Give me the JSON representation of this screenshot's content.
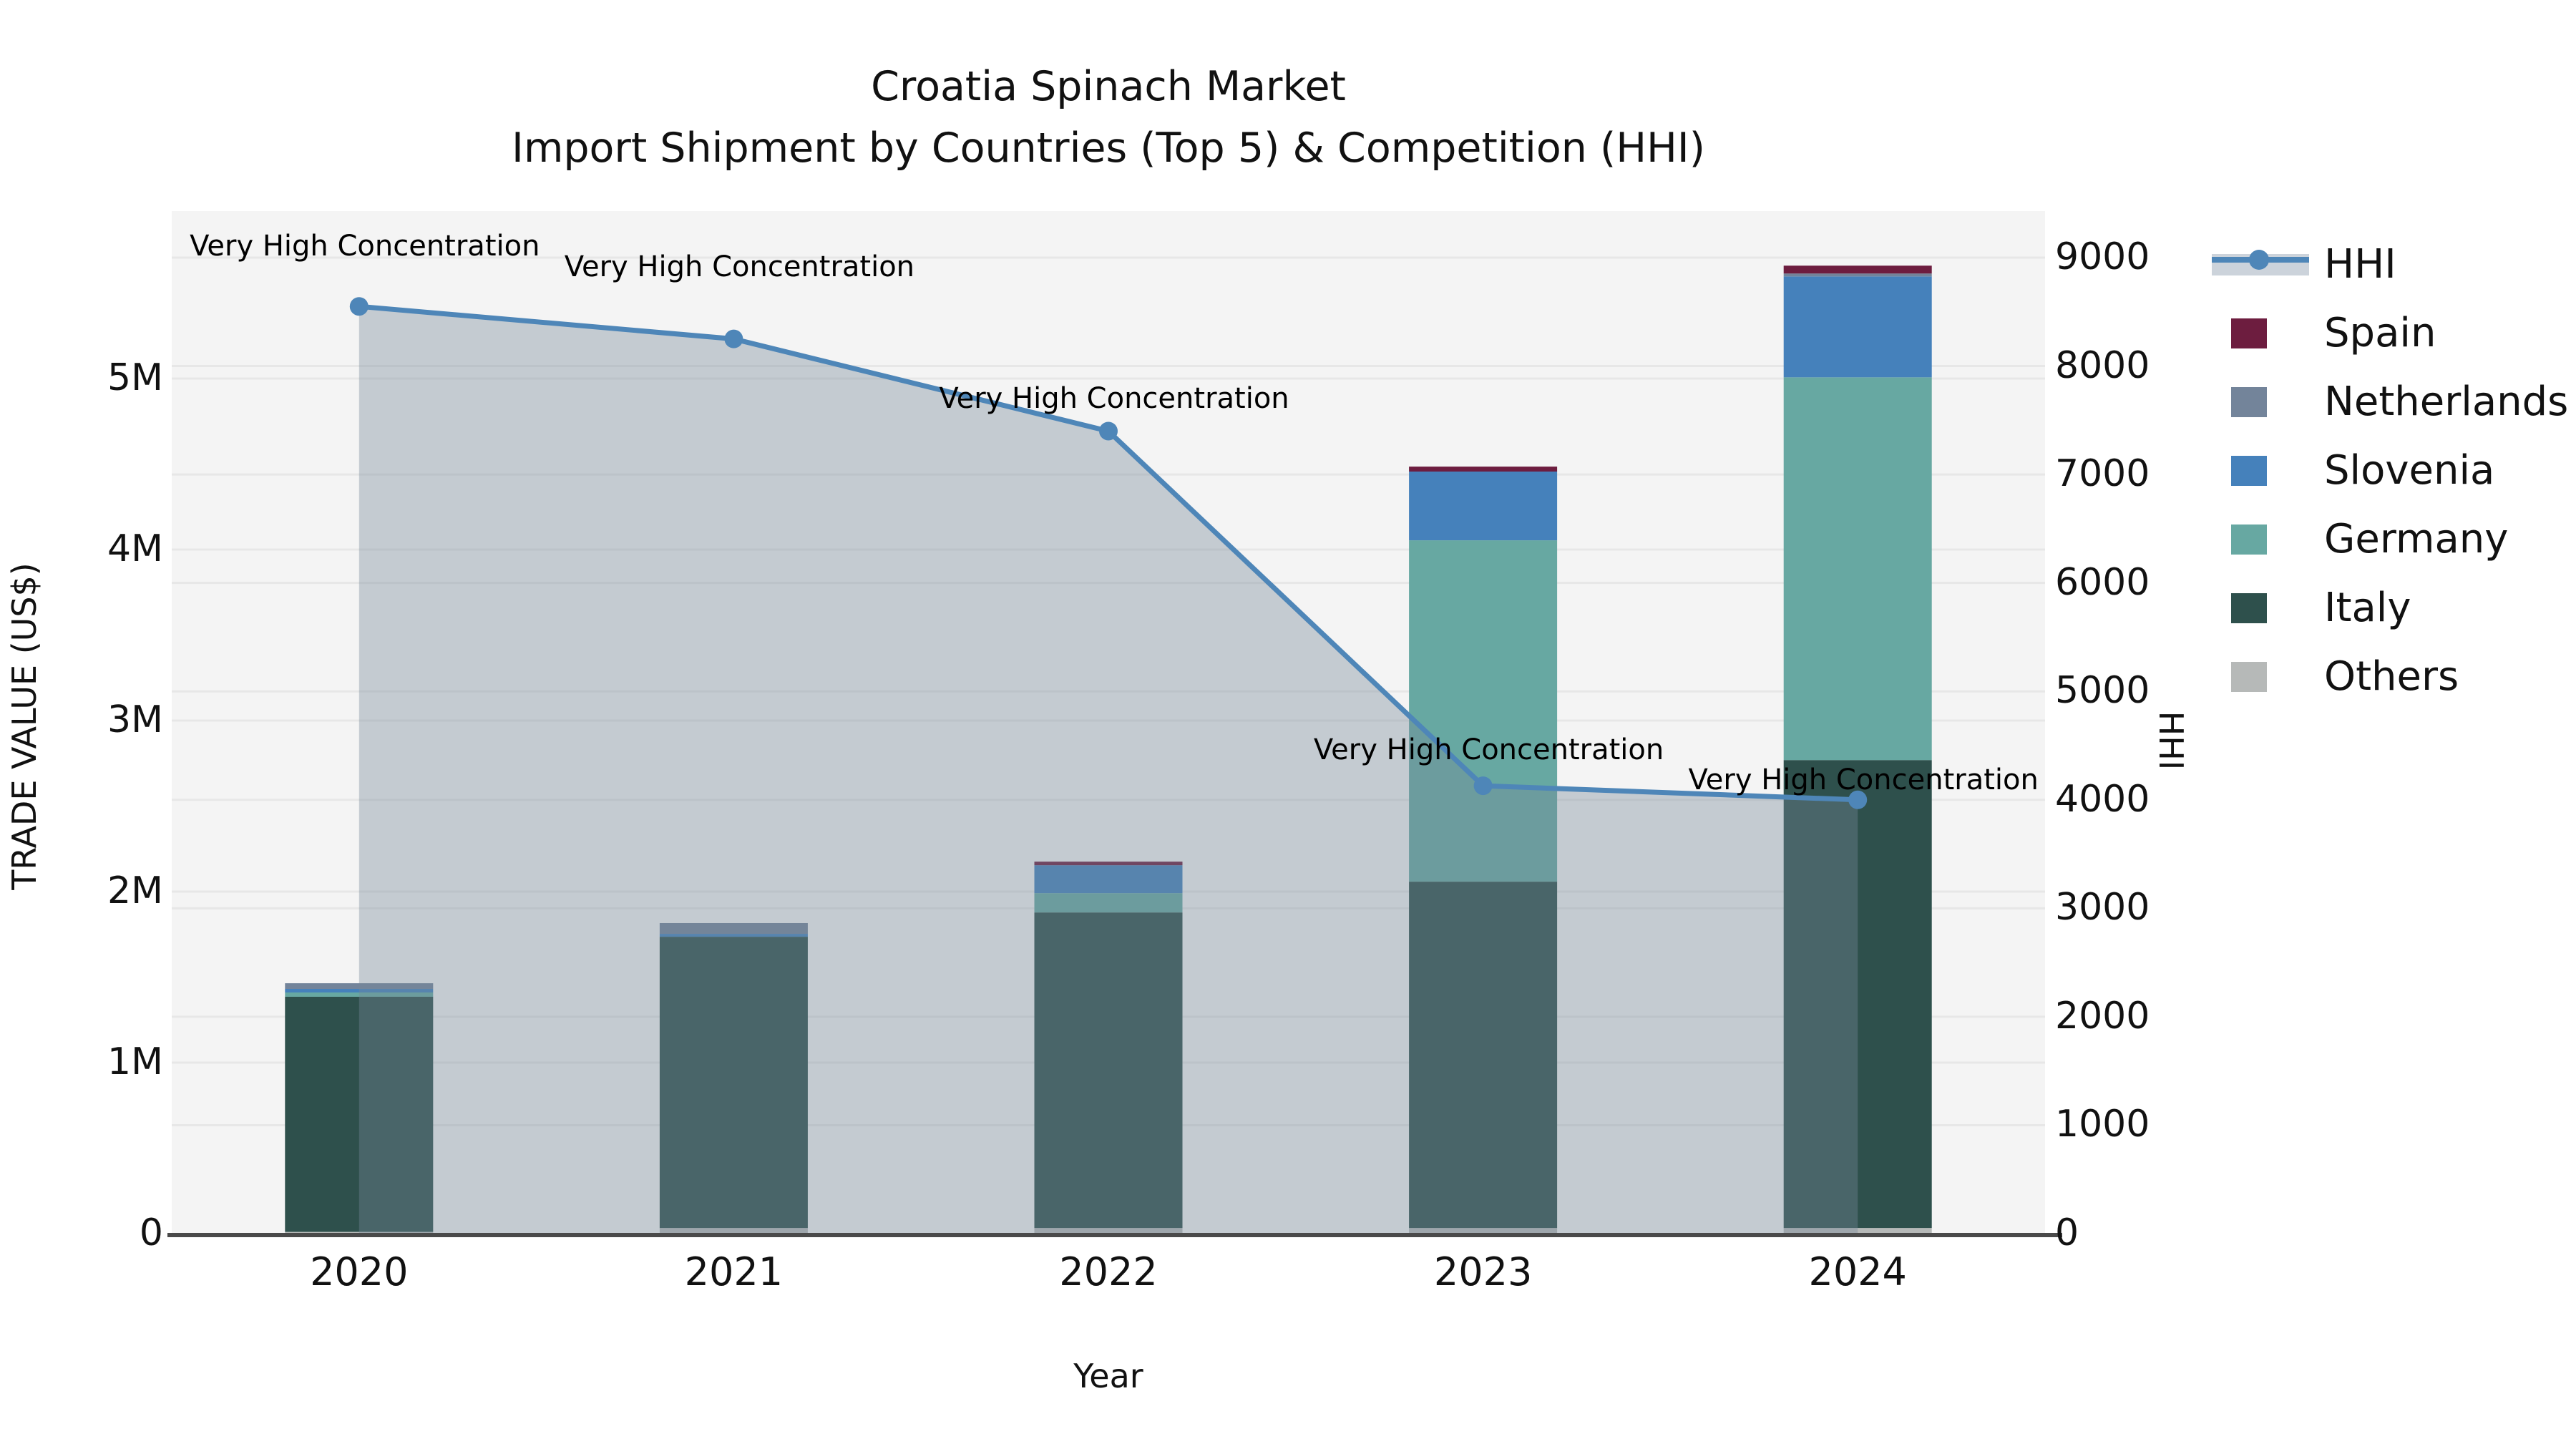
{
  "title": {
    "line1": "Croatia Spinach Market",
    "line2": "Import Shipment by Countries (Top 5) & Competition (HHI)"
  },
  "colors": {
    "plot_background": "#f4f4f4",
    "gridline": "#e7e7e7",
    "axis_line": "#4a4a4a",
    "hhi_line": "#4e86b8",
    "hhi_area_fill": "rgba(119,136,153,0.38)",
    "spain": "#6d1d3f",
    "netherlands": "#73849a",
    "slovenia": "#4581bb",
    "germany": "#67a8a2",
    "italy": "#2e504c",
    "others": "#b6b9b8"
  },
  "chart_data": {
    "type": "bar+line dual-axis (stacked bars with HHI line and shaded area)",
    "title": "Croatia Spinach Market\nImport Shipment by Countries (Top 5) & Competition (HHI)",
    "xlabel": "Year",
    "ylabel_left": "TRADE VALUE (US$)",
    "ylabel_right": "HHI",
    "categories": [
      "2020",
      "2021",
      "2022",
      "2023",
      "2024"
    ],
    "bar_series": [
      {
        "name": "Spain",
        "color": "#6d1d3f",
        "values": [
          0,
          0,
          21000,
          29000,
          46000
        ]
      },
      {
        "name": "Netherlands",
        "color": "#73849a",
        "values": [
          33000,
          63000,
          0,
          0,
          17000
        ]
      },
      {
        "name": "Slovenia",
        "color": "#4581bb",
        "values": [
          21000,
          17000,
          163000,
          402000,
          590000
        ]
      },
      {
        "name": "Germany",
        "color": "#67a8a2",
        "values": [
          25000,
          0,
          113000,
          1996000,
          2238000
        ]
      },
      {
        "name": "Italy",
        "color": "#2e504c",
        "values": [
          1375000,
          1703000,
          1845000,
          2025000,
          2736000
        ]
      },
      {
        "name": "Others",
        "color": "#b6b9b8",
        "values": [
          10000,
          33000,
          33000,
          33000,
          33000
        ]
      }
    ],
    "stack_order_bottom_to_top": [
      "Others",
      "Italy",
      "Germany",
      "Slovenia",
      "Netherlands",
      "Spain"
    ],
    "line_series": {
      "name": "HHI",
      "color": "#4e86b8",
      "values": [
        8550,
        8250,
        7400,
        4130,
        4000
      ]
    },
    "annotations": [
      {
        "year": "2020",
        "text": "Very High Concentration"
      },
      {
        "year": "2021",
        "text": "Very High Concentration"
      },
      {
        "year": "2022",
        "text": "Very High Concentration"
      },
      {
        "year": "2023",
        "text": "Very High Concentration"
      },
      {
        "year": "2024",
        "text": "Very High Concentration"
      }
    ],
    "left_axis": {
      "tick_labels": [
        "0",
        "1M",
        "2M",
        "3M",
        "4M",
        "5M"
      ],
      "tick_values": [
        0,
        1000000,
        2000000,
        3000000,
        4000000,
        5000000
      ],
      "range": [
        0,
        5980000
      ]
    },
    "right_axis": {
      "tick_labels": [
        "0",
        "1000",
        "2000",
        "3000",
        "4000",
        "5000",
        "6000",
        "7000",
        "8000",
        "9000"
      ],
      "tick_values": [
        0,
        1000,
        2000,
        3000,
        4000,
        5000,
        6000,
        7000,
        8000,
        9000
      ],
      "range": [
        0,
        9430
      ]
    },
    "grid": "horizontal gridlines for both axes",
    "legend_position": "right",
    "legend_items": [
      "HHI",
      "Spain",
      "Netherlands",
      "Slovenia",
      "Germany",
      "Italy",
      "Others"
    ]
  }
}
